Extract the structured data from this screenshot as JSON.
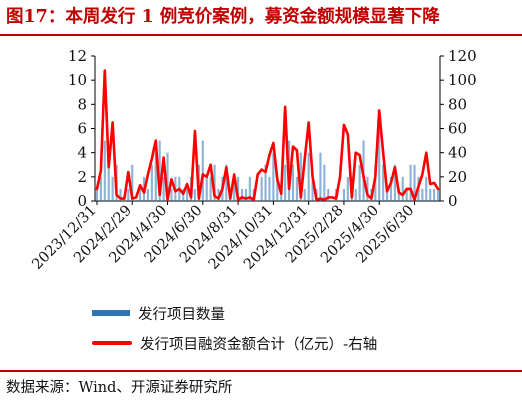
{
  "header": {
    "title": "图17：本周发行 1 例竞价案例，募资金额规模显著下降"
  },
  "footer": {
    "source": "数据来源：Wind、开源证券研究所"
  },
  "colors": {
    "brand_red": "#c00000",
    "bar_blue": "#2e75b6",
    "line_red": "#ff0000"
  },
  "chart_data": {
    "type": "bar+line",
    "title": "",
    "categories": [
      "2023/12/31",
      "",
      "",
      "",
      "",
      "",
      "",
      "",
      "",
      "2024/2/29",
      "",
      "",
      "",
      "",
      "",
      "",
      "",
      "",
      "2024/4/30",
      "",
      "",
      "",
      "",
      "",
      "",
      "",
      "",
      "2024/6/30",
      "",
      "",
      "",
      "",
      "",
      "",
      "",
      "",
      "2024/8/31",
      "",
      "",
      "",
      "",
      "",
      "",
      "",
      "",
      "2024/10/31",
      "",
      "",
      "",
      "",
      "",
      "",
      "",
      "",
      "2024/12/31",
      "",
      "",
      "",
      "",
      "",
      "",
      "",
      "",
      "2025/2/28",
      "",
      "",
      "",
      "",
      "",
      "",
      "",
      "",
      "2025/4/30",
      "",
      "",
      "",
      "",
      "",
      "",
      "",
      "",
      "2025/6/30",
      "",
      "",
      "",
      "",
      "",
      ""
    ],
    "series": [
      {
        "name": "发行项目数量",
        "type": "bar",
        "axis": "left",
        "values": [
          1,
          2,
          5,
          4,
          2,
          3,
          1,
          0,
          1,
          3,
          0,
          1,
          2,
          1,
          3,
          4,
          5,
          2,
          4,
          1,
          2,
          2,
          1,
          1,
          2,
          1,
          3,
          5,
          2,
          2,
          3,
          1,
          2,
          3,
          1,
          2,
          2,
          1,
          1,
          2,
          1,
          0,
          2,
          3,
          2,
          4,
          2,
          1,
          3,
          5,
          3,
          2,
          4,
          1,
          4,
          2,
          1,
          4,
          3,
          1,
          0,
          1,
          0,
          1,
          2,
          2,
          1,
          3,
          5,
          2,
          1,
          3,
          6,
          3,
          1,
          2,
          3,
          1,
          2,
          1,
          3,
          3,
          2,
          1,
          2,
          1,
          1,
          1
        ]
      },
      {
        "name": "发行项目融资金额合计（亿元）-右轴",
        "type": "line",
        "axis": "right",
        "values": [
          10,
          25,
          108,
          28,
          65,
          5,
          2,
          2,
          24,
          2,
          3,
          13,
          7,
          22,
          35,
          50,
          5,
          36,
          1,
          18,
          8,
          10,
          6,
          14,
          3,
          58,
          2,
          22,
          20,
          30,
          4,
          2,
          10,
          28,
          2,
          22,
          1,
          3,
          2,
          3,
          1,
          22,
          26,
          24,
          38,
          48,
          18,
          6,
          78,
          10,
          45,
          42,
          3,
          35,
          65,
          20,
          1,
          2,
          1,
          3,
          3,
          2,
          20,
          63,
          55,
          3,
          40,
          38,
          20,
          5,
          2,
          20,
          75,
          40,
          8,
          15,
          28,
          7,
          5,
          10,
          10,
          1,
          12,
          22,
          40,
          14,
          15,
          10
        ]
      }
    ],
    "y_left": {
      "ylim": [
        0,
        12
      ],
      "ticks": [
        "0",
        "2",
        "4",
        "6",
        "8",
        "10",
        "12"
      ]
    },
    "y_right": {
      "ylim": [
        0,
        120
      ],
      "ticks": [
        "0",
        "20",
        "40",
        "60",
        "80",
        "100",
        "120"
      ]
    },
    "xlabel": "",
    "ylabel": "",
    "grid": false,
    "legend_placement": "bottom"
  }
}
